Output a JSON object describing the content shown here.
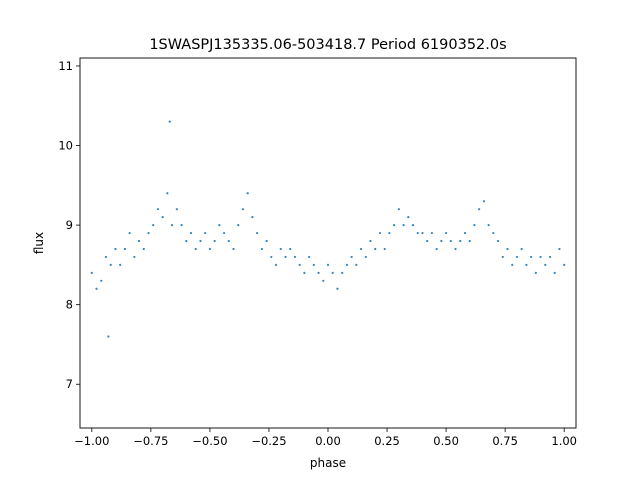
{
  "chart_data": {
    "type": "scatter",
    "title": "1SWASPJ135335.06-503418.7 Period 6190352.0s",
    "xlabel": "phase",
    "ylabel": "flux",
    "xlim": [
      -1.05,
      1.05
    ],
    "ylim": [
      6.45,
      11.1
    ],
    "x_ticks": [
      -1.0,
      -0.75,
      -0.5,
      -0.25,
      0.0,
      0.25,
      0.5,
      0.75,
      1.0
    ],
    "x_tick_labels": [
      "−1.00",
      "−0.75",
      "−0.50",
      "−0.25",
      "0.00",
      "0.25",
      "0.50",
      "0.75",
      "1.00"
    ],
    "y_ticks": [
      7,
      8,
      9,
      10,
      11
    ],
    "y_tick_labels": [
      "7",
      "8",
      "9",
      "10",
      "11"
    ],
    "grid": false,
    "marker_color": "#1f77b4",
    "series": [
      {
        "points": [
          [
            -1.0,
            8.4
          ],
          [
            -0.98,
            8.2
          ],
          [
            -0.96,
            8.3
          ],
          [
            -0.94,
            8.6
          ],
          [
            -0.93,
            7.6
          ],
          [
            -0.92,
            8.5
          ],
          [
            -0.9,
            8.7
          ],
          [
            -0.88,
            8.5
          ],
          [
            -0.86,
            8.7
          ],
          [
            -0.84,
            8.9
          ],
          [
            -0.82,
            8.6
          ],
          [
            -0.8,
            8.8
          ],
          [
            -0.78,
            8.7
          ],
          [
            -0.76,
            8.9
          ],
          [
            -0.74,
            9.0
          ],
          [
            -0.72,
            9.2
          ],
          [
            -0.7,
            9.1
          ],
          [
            -0.68,
            9.4
          ],
          [
            -0.67,
            10.3
          ],
          [
            -0.66,
            9.0
          ],
          [
            -0.64,
            9.2
          ],
          [
            -0.62,
            9.0
          ],
          [
            -0.6,
            8.8
          ],
          [
            -0.58,
            8.9
          ],
          [
            -0.56,
            8.7
          ],
          [
            -0.54,
            8.8
          ],
          [
            -0.52,
            8.9
          ],
          [
            -0.5,
            8.7
          ],
          [
            -0.48,
            8.8
          ],
          [
            -0.46,
            9.0
          ],
          [
            -0.44,
            8.9
          ],
          [
            -0.42,
            8.8
          ],
          [
            -0.4,
            8.7
          ],
          [
            -0.38,
            9.0
          ],
          [
            -0.36,
            9.2
          ],
          [
            -0.34,
            9.4
          ],
          [
            -0.32,
            9.1
          ],
          [
            -0.3,
            8.9
          ],
          [
            -0.28,
            8.7
          ],
          [
            -0.26,
            8.8
          ],
          [
            -0.24,
            8.6
          ],
          [
            -0.22,
            8.5
          ],
          [
            -0.2,
            8.7
          ],
          [
            -0.18,
            8.6
          ],
          [
            -0.16,
            8.7
          ],
          [
            -0.14,
            8.6
          ],
          [
            -0.12,
            8.5
          ],
          [
            -0.1,
            8.4
          ],
          [
            -0.08,
            8.6
          ],
          [
            -0.06,
            8.5
          ],
          [
            -0.04,
            8.4
          ],
          [
            -0.02,
            8.3
          ],
          [
            0.0,
            8.5
          ],
          [
            0.02,
            8.4
          ],
          [
            0.04,
            8.2
          ],
          [
            0.06,
            8.4
          ],
          [
            0.08,
            8.5
          ],
          [
            0.1,
            8.6
          ],
          [
            0.12,
            8.5
          ],
          [
            0.14,
            8.7
          ],
          [
            0.16,
            8.6
          ],
          [
            0.18,
            8.8
          ],
          [
            0.2,
            8.7
          ],
          [
            0.22,
            8.9
          ],
          [
            0.24,
            8.7
          ],
          [
            0.26,
            8.9
          ],
          [
            0.28,
            9.0
          ],
          [
            0.3,
            9.2
          ],
          [
            0.32,
            9.0
          ],
          [
            0.34,
            9.1
          ],
          [
            0.36,
            9.0
          ],
          [
            0.38,
            8.9
          ],
          [
            0.4,
            8.9
          ],
          [
            0.42,
            8.8
          ],
          [
            0.44,
            8.9
          ],
          [
            0.46,
            8.7
          ],
          [
            0.48,
            8.8
          ],
          [
            0.5,
            8.9
          ],
          [
            0.52,
            8.8
          ],
          [
            0.54,
            8.7
          ],
          [
            0.56,
            8.8
          ],
          [
            0.58,
            8.9
          ],
          [
            0.6,
            8.8
          ],
          [
            0.62,
            9.0
          ],
          [
            0.64,
            9.2
          ],
          [
            0.66,
            9.3
          ],
          [
            0.68,
            9.0
          ],
          [
            0.7,
            8.9
          ],
          [
            0.72,
            8.8
          ],
          [
            0.74,
            8.6
          ],
          [
            0.76,
            8.7
          ],
          [
            0.78,
            8.5
          ],
          [
            0.8,
            8.6
          ],
          [
            0.82,
            8.7
          ],
          [
            0.84,
            8.5
          ],
          [
            0.86,
            8.6
          ],
          [
            0.88,
            8.4
          ],
          [
            0.9,
            8.6
          ],
          [
            0.92,
            8.5
          ],
          [
            0.94,
            8.6
          ],
          [
            0.96,
            8.4
          ],
          [
            0.98,
            8.7
          ],
          [
            1.0,
            8.5
          ]
        ]
      }
    ]
  }
}
